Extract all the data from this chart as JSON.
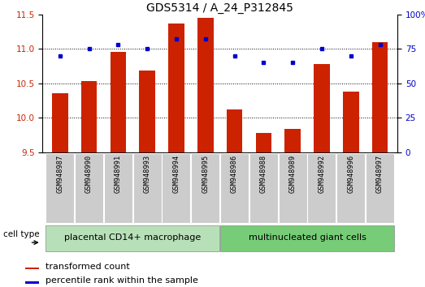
{
  "title": "GDS5314 / A_24_P312845",
  "samples": [
    "GSM948987",
    "GSM948990",
    "GSM948991",
    "GSM948993",
    "GSM948994",
    "GSM948995",
    "GSM948986",
    "GSM948988",
    "GSM948989",
    "GSM948992",
    "GSM948996",
    "GSM948997"
  ],
  "bar_values": [
    10.35,
    10.53,
    10.95,
    10.68,
    11.37,
    11.45,
    10.12,
    9.78,
    9.84,
    10.78,
    10.38,
    11.1
  ],
  "dot_values": [
    70,
    75,
    78,
    75,
    82,
    82,
    70,
    65,
    65,
    75,
    70,
    78
  ],
  "bar_bottom": 9.5,
  "ylim_left": [
    9.5,
    11.5
  ],
  "ylim_right": [
    0,
    100
  ],
  "yticks_left": [
    9.5,
    10.0,
    10.5,
    11.0,
    11.5
  ],
  "yticks_right": [
    0,
    25,
    50,
    75,
    100
  ],
  "ytick_labels_right": [
    "0",
    "25",
    "50",
    "75",
    "100%"
  ],
  "hlines": [
    10.0,
    10.5,
    11.0
  ],
  "bar_color": "#cc2200",
  "dot_color": "#0000cc",
  "group1_label": "placental CD14+ macrophage",
  "group2_label": "multinucleated giant cells",
  "group1_color": "#b8e0b8",
  "group2_color": "#77cc77",
  "cell_type_label": "cell type",
  "legend_bar_label": "transformed count",
  "legend_dot_label": "percentile rank within the sample",
  "title_fontsize": 10,
  "tick_fontsize": 7.5,
  "sample_fontsize": 6.2,
  "group_fontsize": 8,
  "legend_fontsize": 8,
  "bar_color_legend": "#cc2200",
  "dot_color_legend": "#0000cc",
  "group1_count": 6,
  "group2_count": 6,
  "gray_box_color": "#cccccc"
}
